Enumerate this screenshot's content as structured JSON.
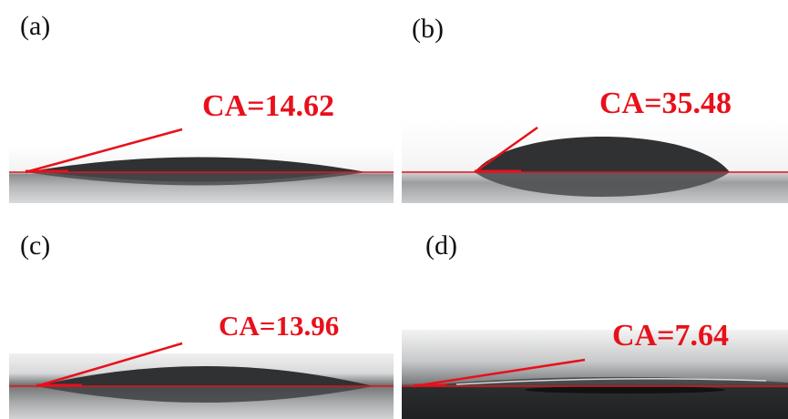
{
  "colors": {
    "annotation": "#e8101a",
    "drop": "#2f3133",
    "substrate_light": "#b8babc"
  },
  "panels": [
    {
      "id": "a",
      "label": "(a)",
      "ca_text": "CA=14.62",
      "contact_angle": 14.62
    },
    {
      "id": "b",
      "label": "(b)",
      "ca_text": "CA=35.48",
      "contact_angle": 35.48
    },
    {
      "id": "c",
      "label": "(c)",
      "ca_text": "CA=13.96",
      "contact_angle": 13.96
    },
    {
      "id": "d",
      "label": "(d)",
      "ca_text": "CA=7.64",
      "contact_angle": 7.64
    }
  ]
}
